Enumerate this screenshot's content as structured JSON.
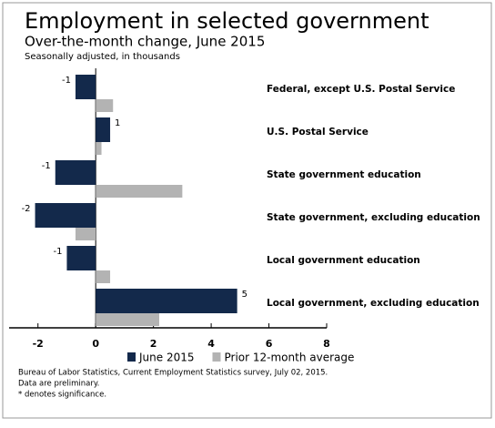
{
  "chart_data": {
    "type": "bar",
    "orientation": "horizontal",
    "title": "Employment in selected government",
    "subtitle": "Over-the-month change, June 2015",
    "units_note": "Seasonally adjusted, in thousands",
    "categories": [
      "Federal, except U.S. Postal Service",
      "U.S. Postal Service",
      "State government education",
      "State government, excluding education",
      "Local government education",
      "Local government, excluding education"
    ],
    "series": [
      {
        "name": "June 2015",
        "color": "#13294b",
        "values": [
          -0.7,
          0.5,
          -1.4,
          -2.1,
          -1.0,
          4.9
        ],
        "value_labels": [
          "-1",
          "1",
          "-1",
          "-2",
          "-1",
          "5"
        ]
      },
      {
        "name": "Prior 12-month average",
        "color": "#b3b3b3",
        "values": [
          0.6,
          0.2,
          3.0,
          -0.7,
          0.5,
          2.2
        ]
      }
    ],
    "xlim": [
      -3,
      8
    ],
    "xticks": [
      -2,
      0,
      2,
      4,
      6,
      8
    ],
    "notes": [
      "Bureau of Labor Statistics, Current Employment Statistics survey, July 02, 2015.",
      "Data are preliminary.",
      "* denotes significance."
    ]
  }
}
